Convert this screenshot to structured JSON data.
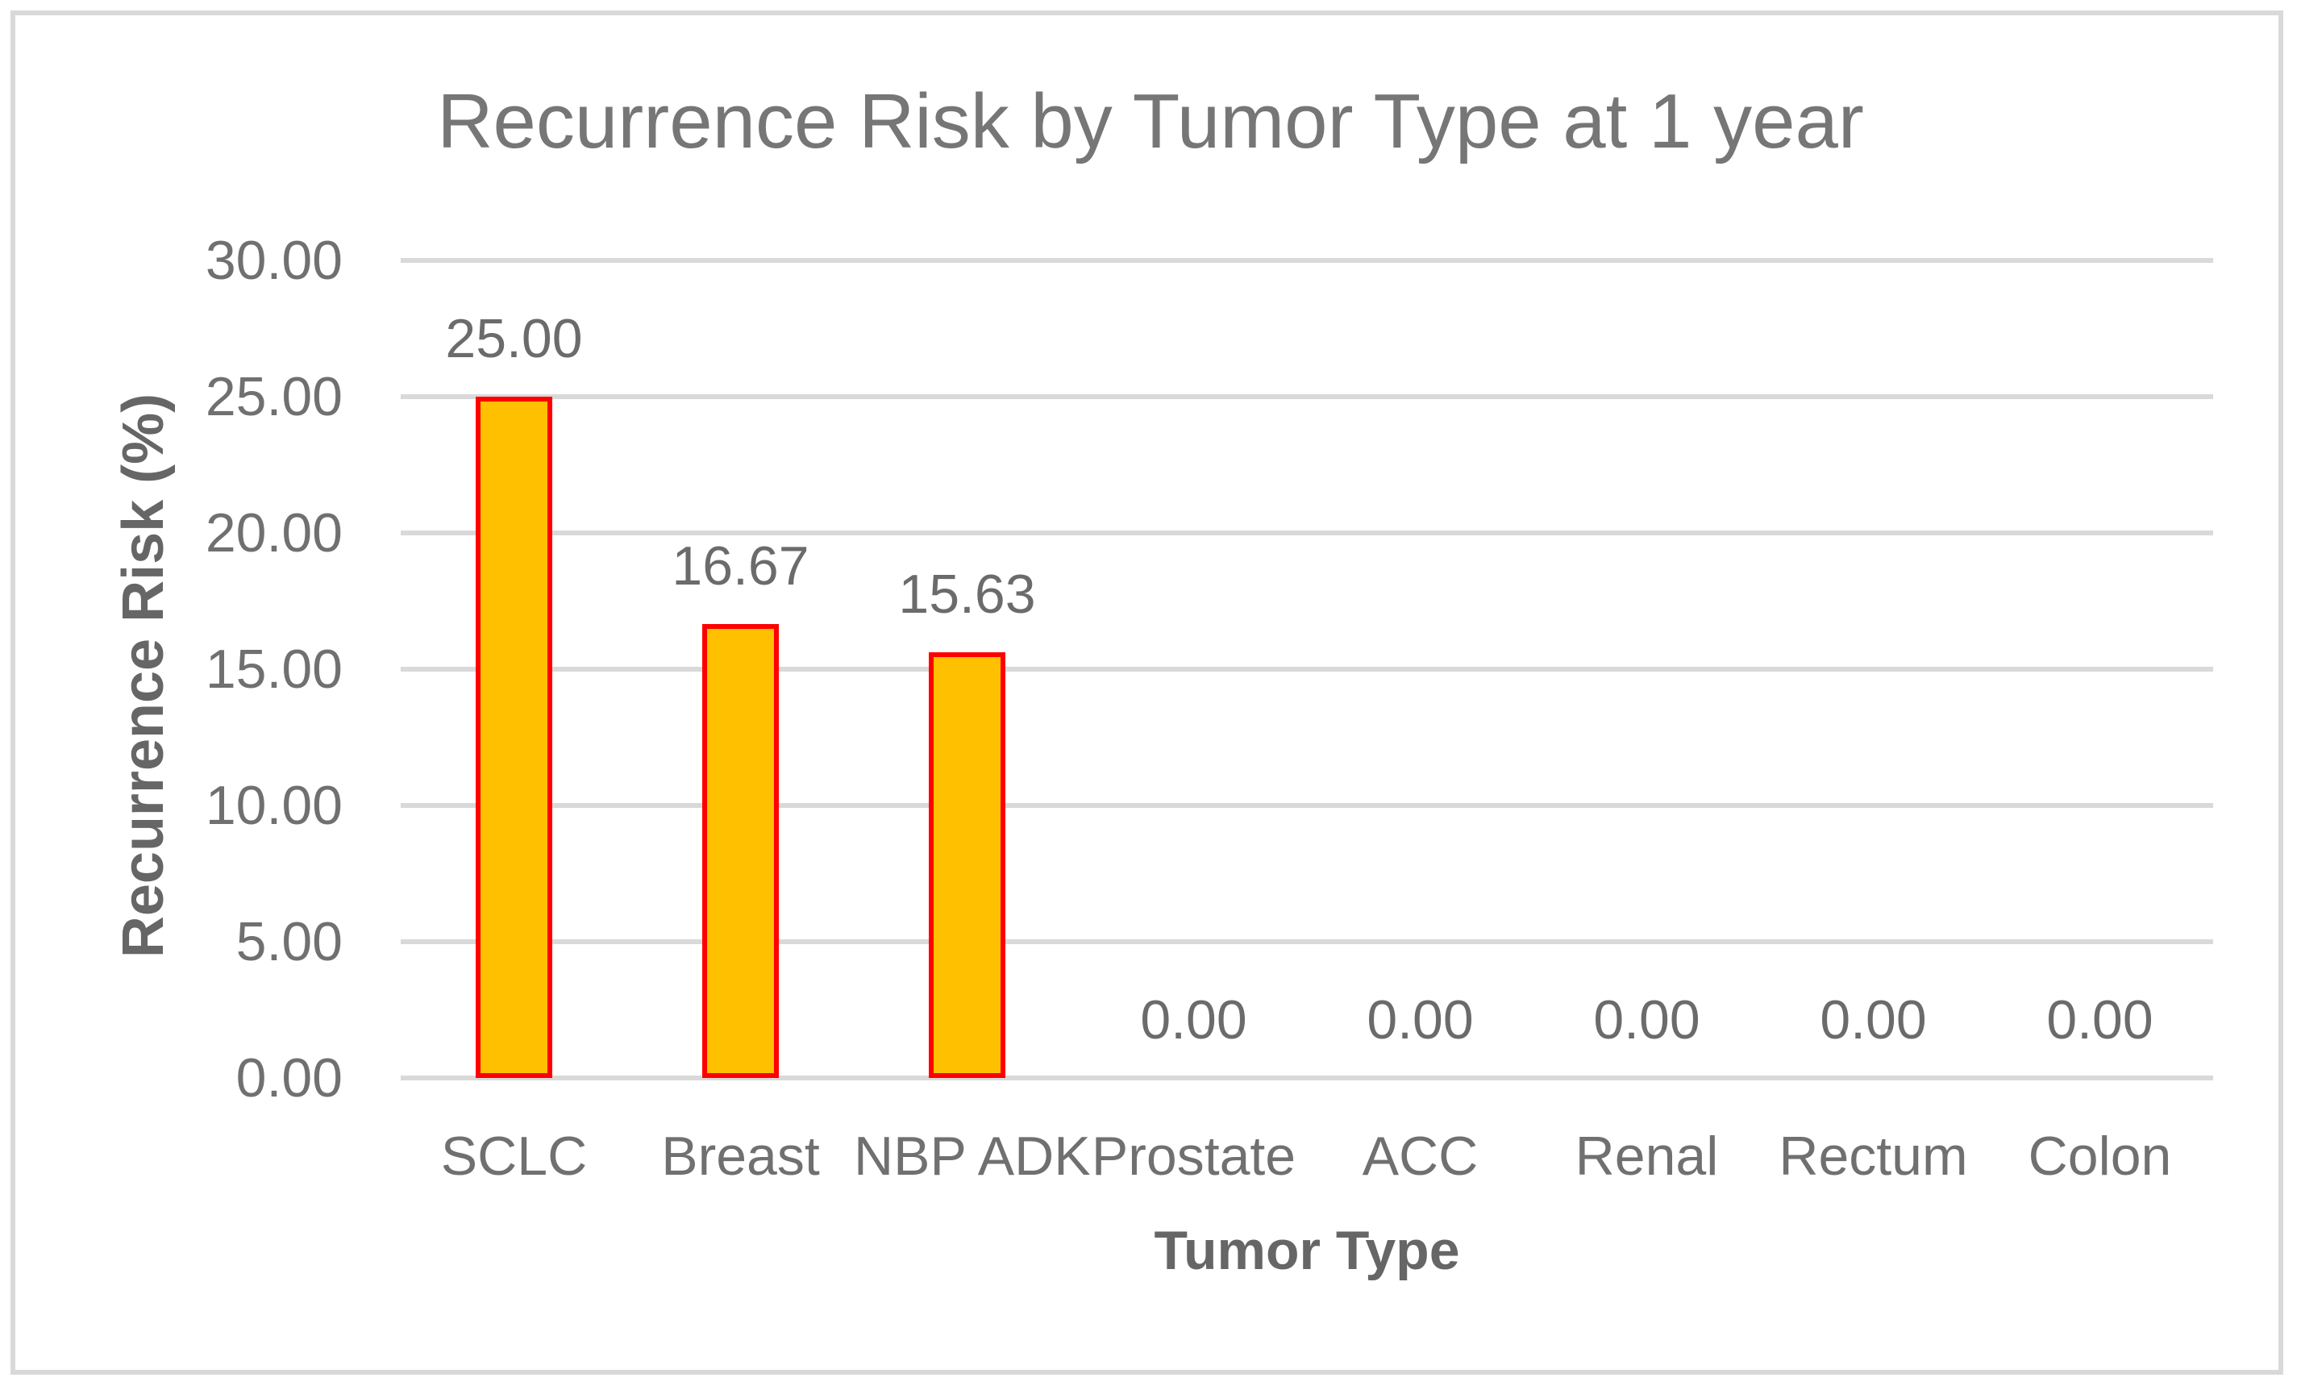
{
  "window": {
    "background": "#FFFFFF",
    "frame_border_color": "#D9D9D9"
  },
  "chart_data": {
    "type": "bar",
    "title": "Recurrence Risk by Tumor Type at 1 year",
    "xlabel": "Tumor Type",
    "ylabel": "Recurrence Risk (%)",
    "categories": [
      "SCLC",
      "Breast",
      "NBP ADK",
      "Prostate",
      "ACC",
      "Renal",
      "Rectum",
      "Colon"
    ],
    "values": [
      25.0,
      16.67,
      15.63,
      0.0,
      0.0,
      0.0,
      0.0,
      0.0
    ],
    "data_labels": [
      "25.00",
      "16.67",
      "15.63",
      "0.00",
      "0.00",
      "0.00",
      "0.00",
      "0.00"
    ],
    "ylim": [
      0,
      30
    ],
    "ytick_step": 5,
    "ytick_labels": [
      "0.00",
      "5.00",
      "10.00",
      "15.00",
      "20.00",
      "25.00",
      "30.00"
    ],
    "grid": true,
    "legend_position": "none",
    "colors": {
      "bar_fill": "#FFC000",
      "bar_border": "#FF0000",
      "gridline": "#D9D9D9",
      "title_text": "#767676",
      "axis_title_text": "#666666",
      "tick_text": "#707070",
      "data_label_text": "#6B6B6B"
    }
  }
}
